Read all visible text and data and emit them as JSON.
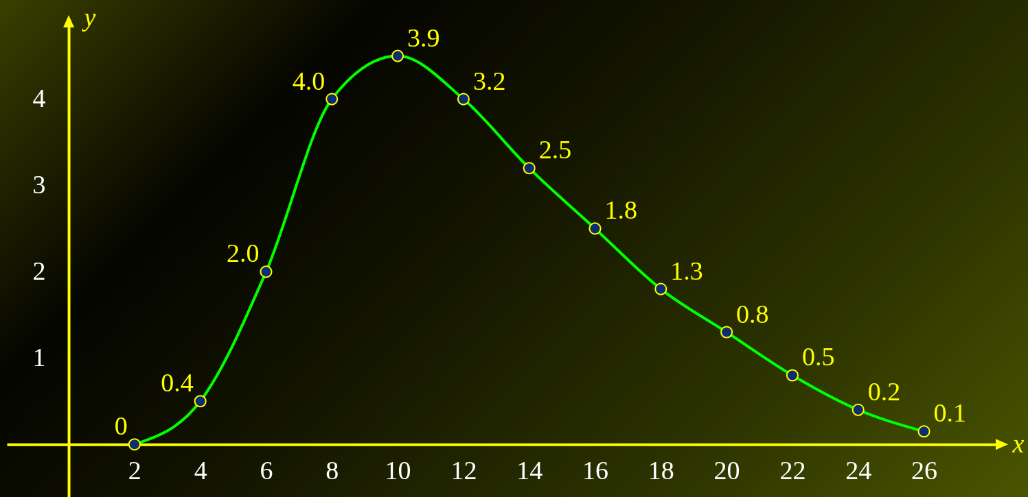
{
  "chart_data": {
    "type": "line",
    "xlabel": "x",
    "ylabel": "y",
    "x": [
      2,
      4,
      6,
      8,
      10,
      12,
      14,
      16,
      18,
      20,
      22,
      24,
      26
    ],
    "series": [
      {
        "color": "#00ff00",
        "values": [
          0,
          0.5,
          2.0,
          4.0,
          4.5,
          4.0,
          3.2,
          2.5,
          1.8,
          1.3,
          0.8,
          0.4,
          0.15
        ]
      }
    ],
    "annotations": [
      {
        "text": "0",
        "x": 2,
        "y": 0
      },
      {
        "text": "0.4",
        "x": 4,
        "y": 0.5
      },
      {
        "text": "2.0",
        "x": 6,
        "y": 2.0
      },
      {
        "text": "4.0",
        "x": 8,
        "y": 4.0
      },
      {
        "text": "3.9",
        "x": 10,
        "y": 4.5
      },
      {
        "text": "3.2",
        "x": 12,
        "y": 4.0
      },
      {
        "text": "2.5",
        "x": 14,
        "y": 3.2
      },
      {
        "text": "1.8",
        "x": 16,
        "y": 2.5
      },
      {
        "text": "1.3",
        "x": 18,
        "y": 1.8
      },
      {
        "text": "0.8",
        "x": 20,
        "y": 1.3
      },
      {
        "text": "0.5",
        "x": 22,
        "y": 0.8
      },
      {
        "text": "0.2",
        "x": 24,
        "y": 0.4
      },
      {
        "text": "0.1",
        "x": 26,
        "y": 0.15
      }
    ],
    "xlim": [
      -1.88,
      28.39
    ],
    "ylim": [
      -0.61,
      4.91
    ],
    "xticks": [
      2,
      4,
      6,
      8,
      10,
      12,
      14,
      16,
      18,
      20,
      22,
      24,
      26
    ],
    "yticks": [
      1,
      2,
      3,
      4
    ],
    "grid": false,
    "marker": "circle",
    "line_style": "solid"
  }
}
